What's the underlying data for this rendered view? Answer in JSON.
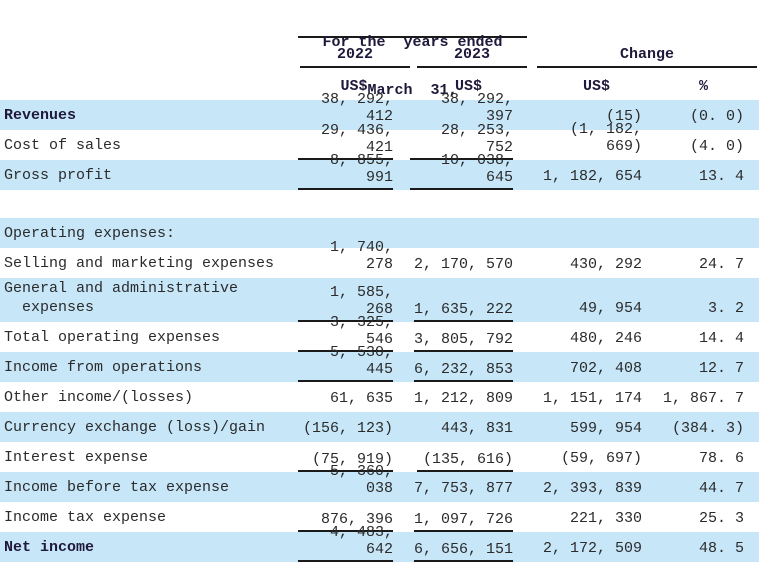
{
  "colors": {
    "stripe_blue": "#c7e7f9",
    "body_text": "#2b2b2b",
    "bold_text": "#20183a",
    "rule_line": "#1a1a1a"
  },
  "header": {
    "period_line1": "For the  years ended",
    "period_line2": "March  31,",
    "year_2022": "2022",
    "year_2023": "2023",
    "change_label": "Change",
    "unit_usd": "US$",
    "unit_pct": "%"
  },
  "rows": [
    {
      "label": "Revenues",
      "v2022": "38, 292, 412",
      "v2023": "38, 292, 397",
      "chg": "(15)",
      "pct": "(0. 0)"
    },
    {
      "label": "Cost of sales",
      "v2022": "29, 436, 421",
      "v2023": "28, 253, 752",
      "chg": "(1, 182, 669)",
      "pct": "(4. 0)"
    },
    {
      "label": "Gross profit",
      "v2022": "8, 855, 991",
      "v2023": "10, 038, 645",
      "chg": "1, 182, 654",
      "pct": "13. 4"
    },
    {
      "label": "Operating expenses:",
      "v2022": "",
      "v2023": "",
      "chg": "",
      "pct": ""
    },
    {
      "label": "Selling and marketing expenses",
      "v2022": "1, 740, 278",
      "v2023": "2, 170, 570",
      "chg": "430, 292",
      "pct": "24. 7"
    },
    {
      "label": "General and administrative\n  expenses",
      "v2022": "1, 585, 268",
      "v2023": "1, 635, 222",
      "chg": "49, 954",
      "pct": "3. 2"
    },
    {
      "label": "Total operating expenses",
      "v2022": "3, 325, 546",
      "v2023": "3, 805, 792",
      "chg": "480, 246",
      "pct": "14. 4"
    },
    {
      "label": "Income from operations",
      "v2022": "5, 530, 445",
      "v2023": "6, 232, 853",
      "chg": "702, 408",
      "pct": "12. 7"
    },
    {
      "label": "Other income/(losses)",
      "v2022": "61, 635",
      "v2023": "1, 212, 809",
      "chg": "1, 151, 174",
      "pct": "1, 867. 7"
    },
    {
      "label": "Currency exchange (loss)/gain",
      "v2022": "(156, 123)",
      "v2023": "443, 831",
      "chg": "599, 954",
      "pct": "(384. 3)"
    },
    {
      "label": "Interest expense",
      "v2022": "(75, 919)",
      "v2023": "(135, 616)",
      "chg": "(59, 697)",
      "pct": "78. 6"
    },
    {
      "label": "Income before tax expense",
      "v2022": "5, 360, 038",
      "v2023": "7, 753, 877",
      "chg": "2, 393, 839",
      "pct": "44. 7"
    },
    {
      "label": "Income tax expense",
      "v2022": "876, 396",
      "v2023": "1, 097, 726",
      "chg": "221, 330",
      "pct": "25. 3"
    },
    {
      "label": "Net income",
      "v2022": "4, 483, 642",
      "v2023": "6, 656, 151",
      "chg": "2, 172, 509",
      "pct": "48. 5"
    }
  ]
}
